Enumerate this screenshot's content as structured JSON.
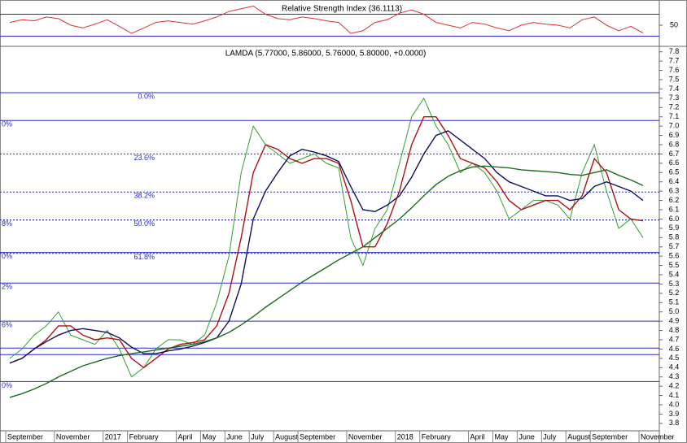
{
  "chart_data": [
    {
      "type": "line",
      "title": "Relative Strength Index (36.1113)",
      "ylim": [
        13,
        90
      ],
      "yticks": [
        50
      ],
      "levels": [
        70,
        30
      ],
      "series": [
        {
          "color": "#e03030",
          "values": [
            55,
            60,
            58,
            65,
            62,
            50,
            45,
            52,
            60,
            48,
            35,
            45,
            55,
            58,
            55,
            52,
            58,
            65,
            75,
            80,
            85,
            70,
            62,
            60,
            65,
            62,
            58,
            55,
            35,
            40,
            55,
            60,
            72,
            78,
            70,
            55,
            50,
            45,
            55,
            52,
            45,
            40,
            50,
            55,
            52,
            50,
            45,
            60,
            65,
            50,
            40,
            48,
            36
          ]
        }
      ]
    },
    {
      "type": "line",
      "title": "LAMDA (5.77000, 5.86000, 5.76000, 5.80000, +0.0000)",
      "categories": [
        "September",
        null,
        null,
        null,
        "November",
        null,
        null,
        null,
        "2017",
        null,
        "February",
        null,
        null,
        null,
        "April",
        null,
        "May",
        null,
        "June",
        null,
        "July",
        null,
        "August",
        null,
        "September",
        null,
        null,
        null,
        "November",
        null,
        null,
        null,
        "2018",
        null,
        "February",
        null,
        null,
        null,
        "April",
        null,
        "May",
        null,
        "June",
        null,
        "July",
        null,
        "August",
        null,
        "September",
        null,
        null,
        null,
        "November"
      ],
      "ylim": [
        3.72,
        7.85
      ],
      "yticks": [
        3.8,
        3.9,
        {
          "value": 4,
          "label": "4.0"
        },
        4.1,
        4.2,
        4.3,
        4.4,
        4.5,
        4.6,
        4.7,
        4.8,
        4.9,
        {
          "value": 5,
          "label": "5.0"
        },
        5.1,
        5.2,
        5.3,
        5.4,
        5.5,
        5.6,
        5.7,
        5.8,
        5.9,
        {
          "value": 6,
          "label": "6.0"
        },
        6.1,
        6.2,
        6.3,
        6.4,
        6.5,
        6.6,
        6.7,
        6.8,
        6.9,
        {
          "value": 7,
          "label": "7.0"
        },
        7.1,
        7.2,
        7.3,
        7.4,
        7.5,
        7.6,
        7.7,
        7.8
      ],
      "fib_retracement": [
        {
          "value": 7.36,
          "label": "0.0%",
          "dashed": false
        },
        {
          "value": 6.7,
          "label": "23.6%",
          "dashed": true
        },
        {
          "value": 6.29,
          "label": "38.2%",
          "dashed": true
        },
        {
          "value": 5.99,
          "label": "50.0%",
          "dashed": true
        },
        {
          "value": 5.63,
          "label": "61.8%",
          "dashed": true
        }
      ],
      "left_levels": [
        {
          "value": 7.06,
          "label": "0%",
          "dashed": false
        },
        {
          "value": 5.99,
          "label": "8%",
          "dashed": true
        },
        {
          "value": 5.64,
          "label": "0%",
          "dashed": false
        },
        {
          "value": 5.31,
          "label": "2%",
          "dashed": false
        },
        {
          "value": 4.9,
          "label": "6%",
          "dashed": false
        },
        {
          "value": 4.61,
          "dashed": false
        },
        {
          "value": 4.54,
          "dashed": false
        },
        {
          "value": 4.25,
          "label": "0%",
          "dashed": false
        }
      ],
      "series": [
        {
          "color": "#33a02c",
          "values": [
            4.5,
            4.6,
            4.75,
            4.85,
            5.0,
            4.75,
            4.7,
            4.65,
            4.8,
            4.6,
            4.3,
            4.4,
            4.6,
            4.7,
            4.7,
            4.65,
            4.75,
            5.1,
            5.6,
            6.5,
            7.0,
            6.8,
            6.7,
            6.6,
            6.65,
            6.7,
            6.6,
            6.55,
            5.8,
            5.5,
            5.9,
            6.1,
            6.6,
            7.1,
            7.3,
            7.0,
            6.8,
            6.5,
            6.6,
            6.5,
            6.3,
            6.0,
            6.1,
            6.2,
            6.2,
            6.15,
            6.0,
            6.5,
            6.8,
            6.3,
            5.9,
            6.0,
            5.8
          ]
        },
        {
          "color": "#b01010",
          "values": [
            4.45,
            4.5,
            4.6,
            4.7,
            4.85,
            4.85,
            4.75,
            4.7,
            4.72,
            4.7,
            4.5,
            4.4,
            4.5,
            4.6,
            4.65,
            4.67,
            4.7,
            4.85,
            5.2,
            5.8,
            6.5,
            6.8,
            6.75,
            6.65,
            6.6,
            6.65,
            6.65,
            6.6,
            6.2,
            5.7,
            5.7,
            5.95,
            6.3,
            6.8,
            7.1,
            7.1,
            6.9,
            6.65,
            6.6,
            6.55,
            6.4,
            6.2,
            6.1,
            6.15,
            6.2,
            6.2,
            6.1,
            6.25,
            6.65,
            6.5,
            6.1,
            6.0,
            5.98
          ]
        },
        {
          "color": "#101060",
          "values": [
            4.45,
            4.5,
            4.6,
            4.68,
            4.75,
            4.8,
            4.82,
            4.8,
            4.78,
            4.72,
            4.62,
            4.55,
            4.55,
            4.58,
            4.6,
            4.63,
            4.67,
            4.72,
            4.9,
            5.3,
            6.0,
            6.3,
            6.5,
            6.68,
            6.75,
            6.72,
            6.68,
            6.62,
            6.35,
            6.1,
            6.08,
            6.15,
            6.25,
            6.45,
            6.7,
            6.9,
            6.95,
            6.85,
            6.75,
            6.65,
            6.5,
            6.4,
            6.35,
            6.3,
            6.25,
            6.25,
            6.2,
            6.22,
            6.35,
            6.4,
            6.35,
            6.3,
            6.2
          ]
        },
        {
          "color": "#1c6b1c",
          "values": [
            4.08,
            4.12,
            4.17,
            4.23,
            4.3,
            4.36,
            4.42,
            4.46,
            4.5,
            4.53,
            4.55,
            4.57,
            4.59,
            4.61,
            4.63,
            4.65,
            4.68,
            4.72,
            4.78,
            4.86,
            4.95,
            5.05,
            5.14,
            5.23,
            5.32,
            5.4,
            5.48,
            5.56,
            5.63,
            5.7,
            5.8,
            5.9,
            6.0,
            6.12,
            6.25,
            6.37,
            6.46,
            6.52,
            6.56,
            6.57,
            6.56,
            6.55,
            6.53,
            6.52,
            6.51,
            6.5,
            6.48,
            6.47,
            6.5,
            6.53,
            6.47,
            6.42,
            6.36
          ]
        }
      ]
    }
  ]
}
